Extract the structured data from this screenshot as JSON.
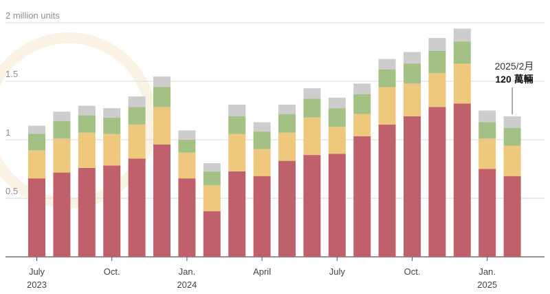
{
  "chart_data": {
    "type": "bar",
    "stacked": true,
    "y_unit_label": "2 million units",
    "ylim": [
      0,
      2.0
    ],
    "yticks": [
      {
        "value": 2.0,
        "label": "2 million units"
      },
      {
        "value": 1.5,
        "label": "1.5"
      },
      {
        "value": 1.0,
        "label": "1"
      },
      {
        "value": 0.5,
        "label": "0.5"
      }
    ],
    "categories": [
      "2023-07",
      "2023-08",
      "2023-09",
      "2023-10",
      "2023-11",
      "2023-12",
      "2024-01",
      "2024-02",
      "2024-03",
      "2024-04",
      "2024-05",
      "2024-06",
      "2024-07",
      "2024-08",
      "2024-09",
      "2024-10",
      "2024-11",
      "2024-12",
      "2025-01",
      "2025-02"
    ],
    "x_tick_labels": [
      {
        "index": 0,
        "line1": "July",
        "line2": "2023"
      },
      {
        "index": 3,
        "line1": "Oct.",
        "line2": ""
      },
      {
        "index": 6,
        "line1": "Jan.",
        "line2": "2024"
      },
      {
        "index": 9,
        "line1": "April",
        "line2": ""
      },
      {
        "index": 12,
        "line1": "July",
        "line2": ""
      },
      {
        "index": 15,
        "line1": "Oct.",
        "line2": ""
      },
      {
        "index": 18,
        "line1": "Jan.",
        "line2": "2025"
      }
    ],
    "series": [
      {
        "color": "#c0606b",
        "values": [
          0.67,
          0.72,
          0.76,
          0.78,
          0.84,
          0.96,
          0.67,
          0.39,
          0.73,
          0.69,
          0.82,
          0.87,
          0.88,
          1.03,
          1.13,
          1.2,
          1.28,
          1.31,
          0.75,
          0.69
        ]
      },
      {
        "color": "#edc87d",
        "values": [
          0.24,
          0.29,
          0.3,
          0.27,
          0.29,
          0.32,
          0.22,
          0.22,
          0.32,
          0.23,
          0.24,
          0.32,
          0.23,
          0.19,
          0.32,
          0.28,
          0.29,
          0.34,
          0.26,
          0.26
        ]
      },
      {
        "color": "#a3c184",
        "values": [
          0.14,
          0.15,
          0.15,
          0.14,
          0.15,
          0.17,
          0.11,
          0.12,
          0.15,
          0.15,
          0.16,
          0.16,
          0.16,
          0.17,
          0.15,
          0.17,
          0.19,
          0.19,
          0.14,
          0.15
        ]
      },
      {
        "color": "#cdcdcd",
        "values": [
          0.07,
          0.08,
          0.08,
          0.08,
          0.09,
          0.09,
          0.08,
          0.07,
          0.1,
          0.08,
          0.08,
          0.09,
          0.09,
          0.09,
          0.09,
          0.1,
          0.11,
          0.11,
          0.1,
          0.1
        ]
      }
    ],
    "annotation": {
      "index": 19,
      "line1": "2025/2月",
      "line2": "120 萬輛"
    },
    "grid": true,
    "legend": "none"
  },
  "colors": {
    "grid": "#d9d9d9",
    "baseline": "#555555",
    "watermark": "#f3e5c8"
  }
}
